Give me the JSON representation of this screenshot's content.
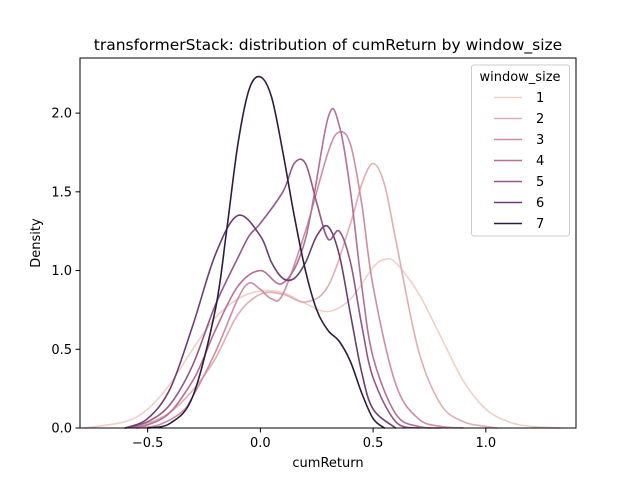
{
  "chart_data": {
    "type": "line",
    "subtype": "kde",
    "title": "transformerStack: distribution of cumReturn by window_size",
    "xlabel": "cumReturn",
    "ylabel": "Density",
    "xlim": [
      -0.8,
      1.4
    ],
    "ylim": [
      0.0,
      2.35
    ],
    "xticks": [
      -0.5,
      0.0,
      0.5,
      1.0
    ],
    "xtick_labels": [
      "−0.5",
      "0.0",
      "0.5",
      "1.0"
    ],
    "yticks": [
      0.0,
      0.5,
      1.0,
      1.5,
      2.0
    ],
    "ytick_labels": [
      "0.0",
      "0.5",
      "1.0",
      "1.5",
      "2.0"
    ],
    "grid": false,
    "legend": {
      "title": "window_size",
      "placement": "top-right"
    },
    "series": [
      {
        "name": "1",
        "color": "#efd0ca",
        "x": [
          -0.78,
          -0.6,
          -0.5,
          -0.4,
          -0.3,
          -0.2,
          -0.1,
          0.0,
          0.1,
          0.2,
          0.3,
          0.4,
          0.5,
          0.55,
          0.6,
          0.7,
          0.8,
          0.9,
          1.0,
          1.1,
          1.2,
          1.33
        ],
        "y": [
          0.0,
          0.04,
          0.12,
          0.28,
          0.5,
          0.7,
          0.82,
          0.87,
          0.86,
          0.79,
          0.74,
          0.82,
          1.02,
          1.07,
          1.05,
          0.86,
          0.58,
          0.3,
          0.12,
          0.04,
          0.01,
          0.0
        ]
      },
      {
        "name": "2",
        "color": "#e0aeb2",
        "x": [
          -0.6,
          -0.5,
          -0.4,
          -0.3,
          -0.2,
          -0.1,
          0.0,
          0.1,
          0.2,
          0.3,
          0.4,
          0.45,
          0.5,
          0.55,
          0.6,
          0.7,
          0.8,
          0.9,
          1.0,
          1.05
        ],
        "y": [
          0.0,
          0.03,
          0.1,
          0.24,
          0.44,
          0.72,
          0.85,
          0.85,
          0.8,
          0.9,
          1.3,
          1.55,
          1.68,
          1.55,
          1.2,
          0.5,
          0.15,
          0.04,
          0.01,
          0.0
        ]
      },
      {
        "name": "3",
        "color": "#cd8ea3",
        "x": [
          -0.55,
          -0.45,
          -0.35,
          -0.3,
          -0.2,
          -0.1,
          -0.05,
          0.0,
          0.05,
          0.1,
          0.2,
          0.3,
          0.35,
          0.4,
          0.45,
          0.5,
          0.6,
          0.7,
          0.8,
          0.9
        ],
        "y": [
          0.0,
          0.02,
          0.1,
          0.2,
          0.48,
          0.82,
          0.92,
          0.88,
          0.82,
          0.85,
          1.25,
          1.75,
          1.88,
          1.8,
          1.42,
          0.9,
          0.28,
          0.06,
          0.01,
          0.0
        ]
      },
      {
        "name": "4",
        "color": "#b57094",
        "x": [
          -0.6,
          -0.5,
          -0.4,
          -0.3,
          -0.25,
          -0.2,
          -0.1,
          0.0,
          0.1,
          0.2,
          0.3,
          0.35,
          0.4,
          0.45,
          0.5,
          0.6,
          0.7,
          0.8
        ],
        "y": [
          0.0,
          0.02,
          0.1,
          0.3,
          0.45,
          0.62,
          0.9,
          1.0,
          0.92,
          1.2,
          1.97,
          1.92,
          1.5,
          0.9,
          0.45,
          0.09,
          0.01,
          0.0
        ]
      },
      {
        "name": "5",
        "color": "#935886",
        "x": [
          -0.6,
          -0.5,
          -0.4,
          -0.3,
          -0.2,
          -0.1,
          -0.05,
          0.0,
          0.1,
          0.15,
          0.2,
          0.25,
          0.3,
          0.35,
          0.4,
          0.45,
          0.5,
          0.6,
          0.7
        ],
        "y": [
          0.0,
          0.04,
          0.15,
          0.4,
          0.78,
          1.08,
          1.22,
          1.3,
          1.5,
          1.68,
          1.68,
          1.43,
          1.2,
          1.25,
          1.05,
          0.65,
          0.32,
          0.04,
          0.0
        ]
      },
      {
        "name": "6",
        "color": "#6c3e74",
        "x": [
          -0.6,
          -0.5,
          -0.4,
          -0.3,
          -0.2,
          -0.1,
          0.0,
          0.05,
          0.1,
          0.15,
          0.2,
          0.25,
          0.3,
          0.35,
          0.4,
          0.45,
          0.5,
          0.6
        ],
        "y": [
          0.0,
          0.06,
          0.25,
          0.65,
          1.1,
          1.35,
          1.22,
          1.05,
          0.95,
          0.95,
          1.05,
          1.22,
          1.28,
          1.1,
          0.72,
          0.35,
          0.12,
          0.0
        ]
      },
      {
        "name": "7",
        "color": "#2d1e3e",
        "x": [
          -0.5,
          -0.4,
          -0.3,
          -0.2,
          -0.15,
          -0.1,
          -0.05,
          0.0,
          0.05,
          0.1,
          0.15,
          0.2,
          0.25,
          0.3,
          0.35,
          0.4,
          0.45,
          0.5,
          0.55
        ],
        "y": [
          0.0,
          0.03,
          0.2,
          0.75,
          1.25,
          1.8,
          2.15,
          2.23,
          2.1,
          1.75,
          1.35,
          1.0,
          0.75,
          0.62,
          0.55,
          0.42,
          0.22,
          0.06,
          0.0
        ]
      }
    ]
  }
}
